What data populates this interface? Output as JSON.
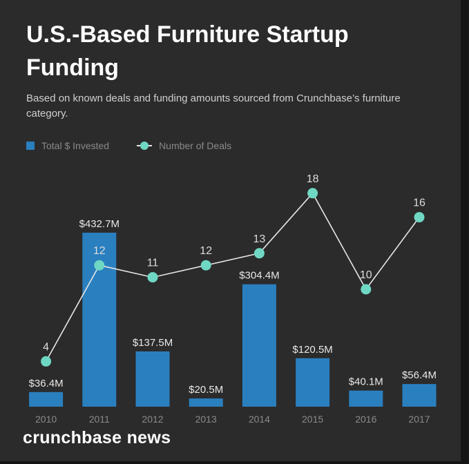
{
  "colors": {
    "background": "#2b2b2b",
    "bar": "#2a7fbf",
    "dot": "#6fd8c4",
    "line": "#e6e6e6",
    "bar_label": "#e8e8e8",
    "deal_label": "#dddddd",
    "tick": "#8a8a8a"
  },
  "header": {
    "title": "U.S.-Based Furniture Startup Funding",
    "subtitle": "Based on known deals and funding amounts sourced from Crunchbase’s furniture category."
  },
  "legend": {
    "bars_label": "Total $ Invested",
    "line_label": "Number of Deals"
  },
  "chart_data": {
    "type": "bar",
    "title": "U.S.-Based Furniture Startup Funding",
    "categories": [
      "2010",
      "2011",
      "2012",
      "2013",
      "2014",
      "2015",
      "2016",
      "2017"
    ],
    "series": [
      {
        "name": "Total $ Invested",
        "type": "bar",
        "values": [
          36.4,
          432.7,
          137.5,
          20.5,
          304.4,
          120.5,
          40.1,
          56.4
        ],
        "labels": [
          "$36.4M",
          "$432.7M",
          "$137.5M",
          "$20.5M",
          "$304.4M",
          "$120.5M",
          "$40.1M",
          "$56.4M"
        ]
      },
      {
        "name": "Number of Deals",
        "type": "line",
        "values": [
          4,
          12,
          11,
          12,
          13,
          18,
          10,
          16
        ],
        "labels": [
          "4",
          "12",
          "11",
          "12",
          "13",
          "18",
          "10",
          "16"
        ]
      }
    ],
    "bar_ylim": [
      0,
      450
    ],
    "line_ylim": [
      0,
      20
    ],
    "grid": false,
    "legend_position": "top-left"
  },
  "footer": {
    "brand": "crunchbase news"
  }
}
